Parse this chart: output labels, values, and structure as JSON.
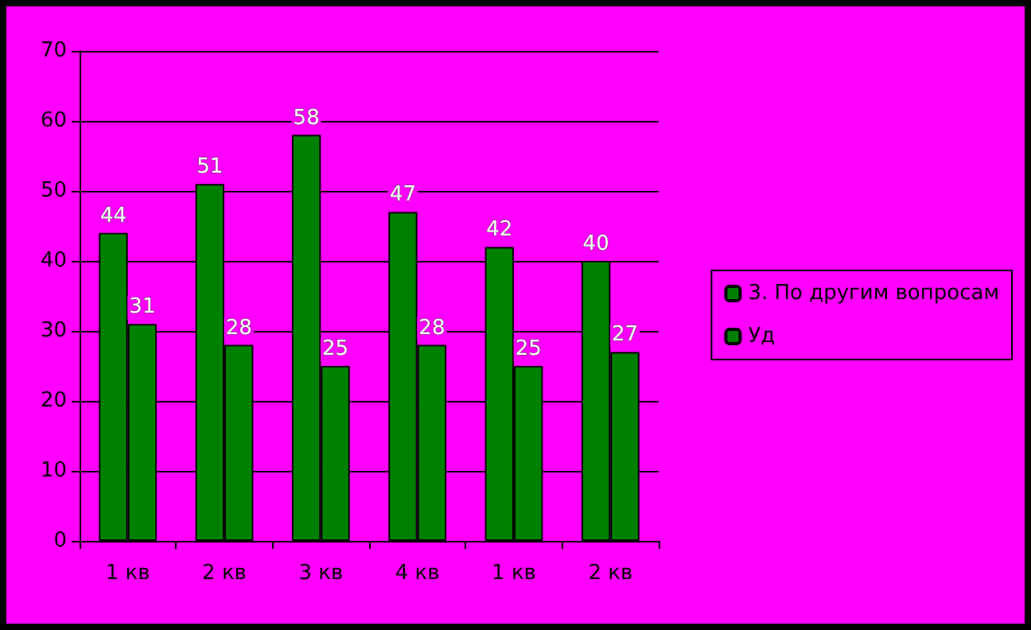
{
  "chart_data": {
    "type": "bar",
    "categories": [
      "1 кв",
      "2 кв",
      "3 кв",
      "4 кв",
      "1 кв",
      "2 кв"
    ],
    "series": [
      {
        "name": "3. По другим вопросам",
        "color": "#008000",
        "values": [
          44,
          51,
          58,
          47,
          42,
          40
        ]
      },
      {
        "name": "Уд",
        "color": "#008000",
        "values": [
          31,
          28,
          25,
          28,
          25,
          27
        ]
      }
    ],
    "ylim": [
      0,
      70
    ],
    "yticks": [
      0,
      10,
      20,
      30,
      40,
      50,
      60,
      70
    ],
    "grid": "y",
    "legend": "right",
    "data_labels": true
  }
}
